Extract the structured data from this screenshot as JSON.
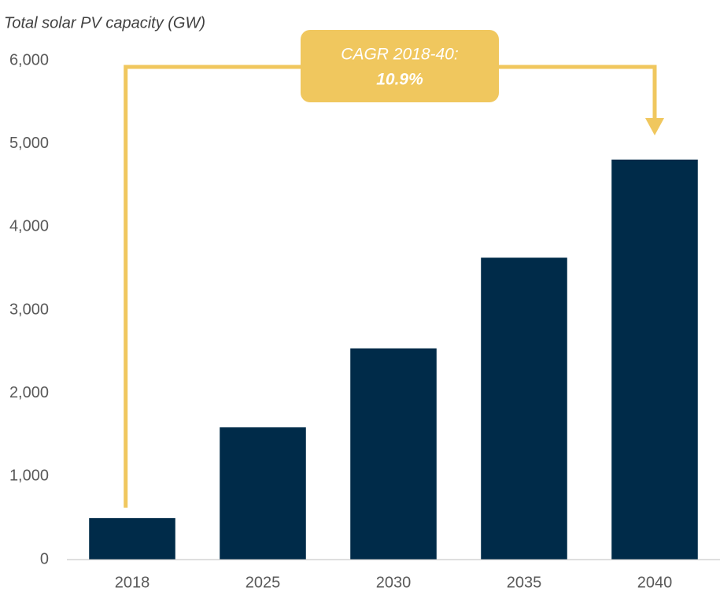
{
  "chart_data": {
    "type": "bar",
    "ylabel": "Total solar PV capacity (GW)",
    "categories": [
      "2018",
      "2025",
      "2030",
      "2035",
      "2040"
    ],
    "values": [
      500,
      1590,
      2540,
      3630,
      4810
    ],
    "color": "#002b49",
    "ylim": [
      0,
      6000
    ],
    "yticks": [
      0,
      {
        "value": 1000,
        "label": "1,000"
      },
      {
        "value": 2000,
        "label": "2,000"
      },
      {
        "value": 3000,
        "label": "3,000"
      },
      {
        "value": 4000,
        "label": "4,000"
      },
      {
        "value": 5000,
        "label": "5,000"
      },
      {
        "value": 6000,
        "label": "6,000"
      }
    ],
    "grid": false,
    "annotations": [
      "CAGR 2018-40:",
      "10.9%"
    ],
    "annotation_color": "#f0c75e"
  }
}
